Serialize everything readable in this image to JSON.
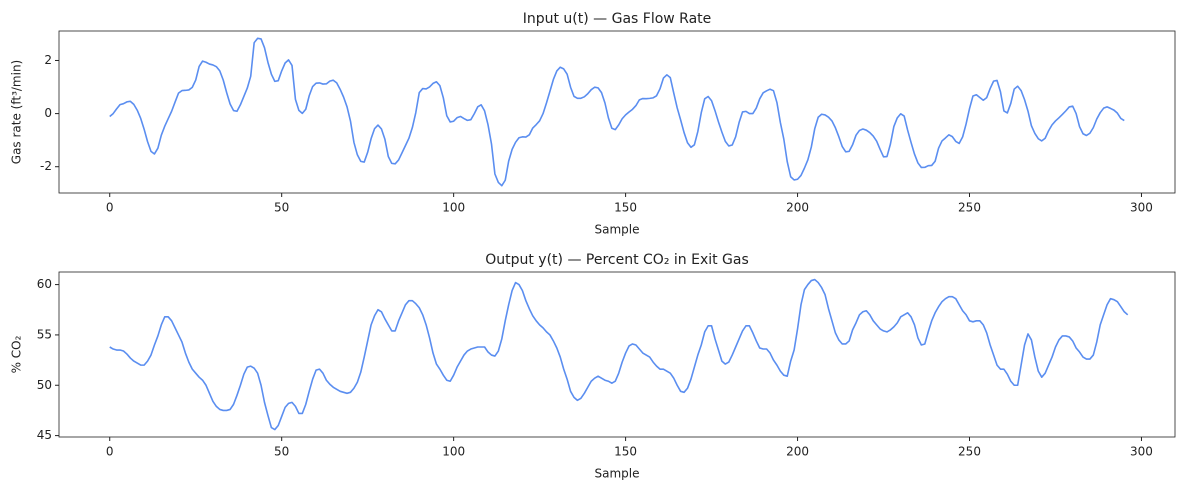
{
  "chart_data": [
    {
      "type": "line",
      "title": "Input  u(t) — Gas Flow Rate",
      "x_label": "Sample",
      "y_label": "Gas rate (ft³/min)",
      "xlim": [
        -14.75,
        309.75
      ],
      "xticks": [
        0,
        50,
        100,
        150,
        200,
        250,
        300
      ],
      "ylim": [
        -2.99,
        3.11
      ],
      "yticks": [
        -2,
        0,
        2
      ],
      "series": [
        {
          "name": "u(t)",
          "color": "#5b8ef0",
          "values": [
            -0.109,
            0.0,
            0.178,
            0.339,
            0.373,
            0.441,
            0.461,
            0.348,
            0.127,
            -0.18,
            -0.588,
            -1.055,
            -1.421,
            -1.52,
            -1.302,
            -0.814,
            -0.475,
            -0.193,
            0.088,
            0.435,
            0.771,
            0.866,
            0.875,
            0.891,
            0.987,
            1.263,
            1.775,
            1.976,
            1.934,
            1.866,
            1.832,
            1.767,
            1.608,
            1.265,
            0.79,
            0.36,
            0.115,
            0.088,
            0.331,
            0.645,
            0.96,
            1.409,
            2.67,
            2.834,
            2.812,
            2.483,
            1.929,
            1.485,
            1.214,
            1.239,
            1.608,
            1.905,
            2.023,
            1.815,
            0.535,
            0.122,
            0.009,
            0.164,
            0.671,
            1.019,
            1.146,
            1.155,
            1.112,
            1.121,
            1.223,
            1.257,
            1.157,
            0.913,
            0.62,
            0.255,
            -0.28,
            -1.08,
            -1.551,
            -1.799,
            -1.825,
            -1.456,
            -0.944,
            -0.57,
            -0.431,
            -0.577,
            -0.96,
            -1.616,
            -1.875,
            -1.891,
            -1.746,
            -1.474,
            -1.201,
            -0.927,
            -0.524,
            0.04,
            0.788,
            0.943,
            0.93,
            1.006,
            1.137,
            1.198,
            1.054,
            0.595,
            -0.08,
            -0.314,
            -0.288,
            -0.153,
            -0.109,
            -0.187,
            -0.255,
            -0.229,
            -0.007,
            0.254,
            0.33,
            0.102,
            -0.423,
            -1.139,
            -2.275,
            -2.594,
            -2.716,
            -2.51,
            -1.79,
            -1.346,
            -1.081,
            -0.91,
            -0.876,
            -0.885,
            -0.8,
            -0.544,
            -0.416,
            -0.271,
            0.0,
            0.403,
            0.841,
            1.285,
            1.607,
            1.746,
            1.683,
            1.485,
            0.993,
            0.648,
            0.577,
            0.577,
            0.632,
            0.747,
            0.9,
            0.993,
            0.968,
            0.79,
            0.399,
            -0.161,
            -0.553,
            -0.603,
            -0.424,
            -0.194,
            -0.049,
            0.06,
            0.161,
            0.301,
            0.517,
            0.566,
            0.56,
            0.573,
            0.592,
            0.671,
            0.933,
            1.337,
            1.46,
            1.353,
            0.772,
            0.218,
            -0.237,
            -0.714,
            -1.099,
            -1.269,
            -1.175,
            -0.676,
            0.033,
            0.556,
            0.643,
            0.484,
            0.109,
            -0.31,
            -0.697,
            -1.047,
            -1.218,
            -1.183,
            -0.873,
            -0.336,
            0.063,
            0.084,
            0.0,
            0.001,
            0.209,
            0.556,
            0.782,
            0.858,
            0.918,
            0.862,
            0.416,
            -0.336,
            -0.959,
            -1.813,
            -2.378,
            -2.499,
            -2.473,
            -2.33,
            -2.053,
            -1.739,
            -1.261,
            -0.569,
            -0.137,
            -0.024,
            -0.05,
            -0.135,
            -0.276,
            -0.534,
            -0.871,
            -1.243,
            -1.439,
            -1.422,
            -1.175,
            -0.813,
            -0.634,
            -0.582,
            -0.625,
            -0.713,
            -0.848,
            -1.039,
            -1.346,
            -1.628,
            -1.619,
            -1.149,
            -0.488,
            -0.16,
            -0.007,
            -0.092,
            -0.62,
            -1.086,
            -1.525,
            -1.858,
            -2.029,
            -2.024,
            -1.961,
            -1.952,
            -1.794,
            -1.302,
            -1.03,
            -0.918,
            -0.798,
            -0.867,
            -1.047,
            -1.123,
            -0.876,
            -0.395,
            0.185,
            0.662,
            0.709,
            0.605,
            0.501,
            0.603,
            0.943,
            1.223,
            1.249,
            0.824,
            0.102,
            0.025,
            0.382,
            0.922,
            1.032,
            0.866,
            0.527,
            0.093,
            -0.458,
            -0.748,
            -0.947,
            -1.029,
            -0.928,
            -0.645,
            -0.424,
            -0.276,
            -0.158,
            -0.033,
            0.102,
            0.251,
            0.28,
            0.0,
            -0.493,
            -0.759,
            -0.824,
            -0.74,
            -0.528,
            -0.204,
            0.034,
            0.204,
            0.253,
            0.195,
            0.131,
            0.017,
            -0.182,
            -0.262
          ]
        }
      ]
    },
    {
      "type": "line",
      "title": "Output  y(t) — Percent CO₂ in Exit Gas",
      "x_label": "Sample",
      "y_label": "% CO₂",
      "xlim": [
        -14.75,
        309.75
      ],
      "xticks": [
        0,
        50,
        100,
        150,
        200,
        250,
        300
      ],
      "ylim": [
        44.86,
        61.25
      ],
      "yticks": [
        45,
        50,
        55,
        60
      ],
      "series": [
        {
          "name": "y(t)",
          "color": "#5b8ef0",
          "values": [
            53.8,
            53.6,
            53.5,
            53.5,
            53.4,
            53.1,
            52.7,
            52.4,
            52.2,
            52.0,
            52.0,
            52.4,
            53.0,
            54.0,
            54.9,
            56.0,
            56.8,
            56.8,
            56.4,
            55.7,
            55.0,
            54.3,
            53.2,
            52.3,
            51.6,
            51.2,
            50.8,
            50.5,
            50.0,
            49.2,
            48.4,
            47.9,
            47.6,
            47.5,
            47.5,
            47.6,
            48.1,
            49.0,
            50.0,
            51.1,
            51.8,
            51.9,
            51.7,
            51.2,
            50.0,
            48.3,
            47.0,
            45.8,
            45.6,
            46.0,
            46.9,
            47.8,
            48.2,
            48.3,
            47.9,
            47.2,
            47.2,
            48.1,
            49.4,
            50.6,
            51.5,
            51.6,
            51.2,
            50.5,
            50.1,
            49.8,
            49.6,
            49.4,
            49.3,
            49.2,
            49.3,
            49.7,
            50.3,
            51.3,
            52.8,
            54.4,
            56.0,
            56.9,
            57.5,
            57.3,
            56.6,
            56.0,
            55.4,
            55.4,
            56.4,
            57.2,
            58.0,
            58.4,
            58.4,
            58.1,
            57.7,
            57.0,
            56.0,
            54.7,
            53.2,
            52.1,
            51.6,
            51.0,
            50.5,
            50.4,
            51.0,
            51.8,
            52.4,
            53.0,
            53.4,
            53.6,
            53.7,
            53.8,
            53.8,
            53.8,
            53.3,
            53.0,
            52.9,
            53.4,
            54.6,
            56.4,
            58.0,
            59.4,
            60.2,
            60.0,
            59.4,
            58.4,
            57.6,
            56.9,
            56.4,
            56.0,
            55.7,
            55.3,
            55.0,
            54.4,
            53.7,
            52.8,
            51.6,
            50.6,
            49.4,
            48.8,
            48.5,
            48.7,
            49.2,
            49.8,
            50.4,
            50.7,
            50.9,
            50.7,
            50.5,
            50.4,
            50.2,
            50.4,
            51.2,
            52.3,
            53.2,
            53.9,
            54.1,
            54.0,
            53.6,
            53.2,
            53.0,
            52.8,
            52.3,
            51.9,
            51.6,
            51.6,
            51.4,
            51.2,
            50.7,
            50.0,
            49.4,
            49.3,
            49.7,
            50.6,
            51.8,
            53.0,
            54.0,
            55.3,
            55.9,
            55.9,
            54.6,
            53.5,
            52.4,
            52.1,
            52.3,
            53.0,
            53.8,
            54.6,
            55.4,
            55.9,
            55.9,
            55.2,
            54.4,
            53.7,
            53.6,
            53.6,
            53.2,
            52.5,
            52.0,
            51.4,
            51.0,
            50.9,
            52.4,
            53.5,
            55.6,
            58.0,
            59.5,
            60.0,
            60.4,
            60.5,
            60.2,
            59.7,
            59.0,
            57.6,
            56.4,
            55.2,
            54.5,
            54.1,
            54.1,
            54.4,
            55.5,
            56.2,
            57.0,
            57.3,
            57.4,
            57.0,
            56.4,
            56.0,
            55.6,
            55.4,
            55.3,
            55.5,
            55.8,
            56.2,
            56.8,
            57.0,
            57.2,
            56.8,
            56.0,
            54.7,
            54.0,
            54.1,
            55.3,
            56.4,
            57.2,
            57.8,
            58.3,
            58.6,
            58.8,
            58.8,
            58.6,
            58.0,
            57.4,
            57.0,
            56.4,
            56.3,
            56.4,
            56.4,
            56.0,
            55.2,
            54.0,
            53.0,
            52.0,
            51.6,
            51.6,
            51.1,
            50.4,
            50.0,
            50.0,
            52.0,
            54.0,
            55.1,
            54.5,
            52.8,
            51.4,
            50.8,
            51.2,
            52.0,
            52.8,
            53.8,
            54.5,
            54.9,
            54.9,
            54.8,
            54.4,
            53.7,
            53.3,
            52.8,
            52.6,
            52.6,
            53.0,
            54.3,
            56.0,
            57.0,
            58.0,
            58.6,
            58.5,
            58.3,
            57.8,
            57.3,
            57.0
          ]
        }
      ]
    }
  ]
}
